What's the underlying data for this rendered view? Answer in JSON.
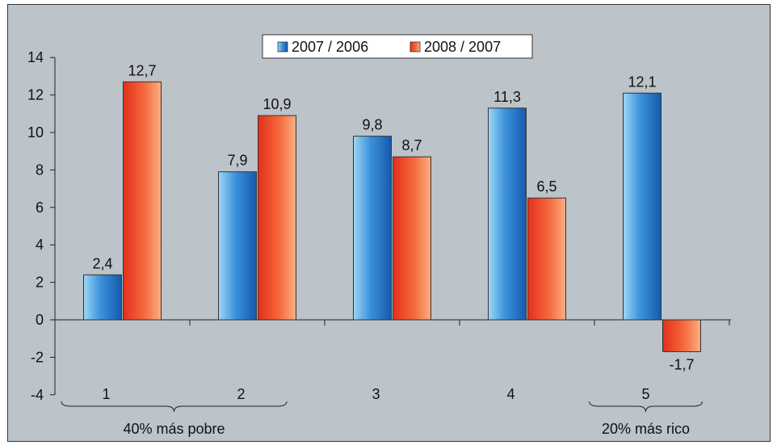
{
  "chart_data": {
    "type": "bar",
    "title": "",
    "xlabel": "",
    "ylabel": "",
    "categories": [
      "1",
      "2",
      "3",
      "4",
      "5"
    ],
    "series": [
      {
        "name": "2007 / 2006",
        "values": [
          2.4,
          7.9,
          9.8,
          11.3,
          12.1
        ],
        "labels": [
          "2,4",
          "7,9",
          "9,8",
          "11,3",
          "12,1"
        ],
        "color": "#2f85d2"
      },
      {
        "name": "2008 / 2007",
        "values": [
          12.7,
          10.9,
          8.7,
          6.5,
          -1.7
        ],
        "labels": [
          "12,7",
          "10,9",
          "8,7",
          "6,5",
          "-1,7"
        ],
        "color": "#ee4c2a"
      }
    ],
    "ylim": [
      -4,
      14
    ],
    "yticks": [
      -4,
      -2,
      0,
      2,
      4,
      6,
      8,
      10,
      12,
      14
    ],
    "ytick_labels": [
      "-4",
      "-2",
      "0",
      "2",
      "4",
      "6",
      "8",
      "10",
      "12",
      "14"
    ],
    "legend_position": "top-center",
    "grid": false,
    "group_annotations": [
      {
        "text": "40% más pobre",
        "from_category": 0,
        "to_category": 1
      },
      {
        "text": "20% más rico",
        "from_category": 4,
        "to_category": 4
      }
    ]
  }
}
